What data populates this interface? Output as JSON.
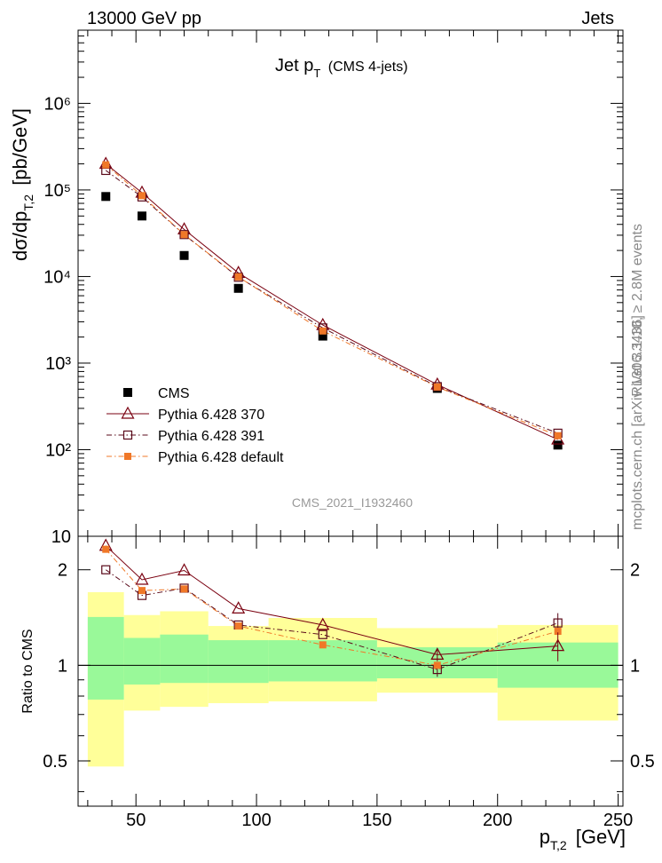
{
  "header": {
    "left": "13000 GeV pp",
    "right": "Jets"
  },
  "side_labels": {
    "rivet": "Rivet 3.1.10, ≥ 2.8M events",
    "mcplots": "mcplots.cern.ch [arXiv:1306.3436]"
  },
  "chart_data": [
    {
      "type": "scatter",
      "title": "Jet p_T (CMS 4-jets)",
      "title_main": "Jet p",
      "title_sub": "T",
      "title_extra": "(CMS 4-jets)",
      "ylabel": "dσ/dp_T,2 [pb/GeV]",
      "ylabel_main": "dσ/dp",
      "ylabel_sub": "T,2",
      "ylabel_unit": "[pb/GeV]",
      "y_scale": "log",
      "ylim": [
        10,
        7000000
      ],
      "xlim": [
        26,
        252
      ],
      "x": [
        37.5,
        52.5,
        70,
        92.5,
        127.5,
        175,
        225
      ],
      "y_tick_labels": [
        "10",
        "10²",
        "10³",
        "10⁴",
        "10⁵",
        "10⁶"
      ],
      "watermark": "CMS_2021_I1932460",
      "legend_position": "lower-left",
      "series": [
        {
          "name": "CMS",
          "color": "#000000",
          "marker": "filled-square",
          "line": "none",
          "values": [
            84000,
            50000,
            17500,
            7300,
            2050,
            510,
            113
          ]
        },
        {
          "name": "Pythia 6.428 370",
          "color": "#7a0010",
          "marker": "open-triangle",
          "line": "solid",
          "values": [
            200000,
            93000,
            35000,
            11000,
            2750,
            565,
            131
          ]
        },
        {
          "name": "Pythia 6.428 391",
          "color": "#5a0a1a",
          "marker": "open-square",
          "line": "dash-dot",
          "values": [
            168000,
            83000,
            30500,
            9800,
            2550,
            535,
            155
          ]
        },
        {
          "name": "Pythia 6.428 default",
          "color": "#f07828",
          "marker": "filled-small-square",
          "line": "dash-dot",
          "values": [
            195000,
            86000,
            30500,
            9900,
            2350,
            530,
            145
          ]
        }
      ]
    },
    {
      "type": "scatter",
      "ylabel": "Ratio to CMS",
      "xlabel": "p_T,2 [GeV]",
      "xlabel_main": "p",
      "xlabel_sub": "T,2",
      "xlabel_unit": "[GeV]",
      "y_scale": "log",
      "ylim": [
        0.36,
        2.55
      ],
      "xlim": [
        26,
        252
      ],
      "x_ticks": [
        50,
        100,
        150,
        200,
        250
      ],
      "x_tick_labels": [
        "50",
        "100",
        "150",
        "200",
        "250"
      ],
      "y_ticks": [
        0.5,
        1,
        2
      ],
      "y_tick_labels": [
        "0.5",
        "1",
        "2"
      ],
      "bin_edges": [
        30,
        45,
        60,
        80,
        105,
        150,
        200,
        250
      ],
      "band_stat_low": [
        0.78,
        0.87,
        0.88,
        0.88,
        0.89,
        0.91,
        0.85
      ],
      "band_stat_high": [
        1.42,
        1.22,
        1.25,
        1.2,
        1.2,
        1.14,
        1.18
      ],
      "band_total_low": [
        0.48,
        0.72,
        0.74,
        0.76,
        0.77,
        0.82,
        0.67
      ],
      "band_total_high": [
        1.7,
        1.44,
        1.48,
        1.33,
        1.41,
        1.31,
        1.34
      ],
      "band_colors": {
        "stat": "#99f999",
        "total": "#ffff99"
      },
      "series": [
        {
          "name": "Pythia 6.428 370",
          "color": "#7a0010",
          "values": [
            2.38,
            1.86,
            1.99,
            1.51,
            1.34,
            1.08,
            1.15
          ]
        },
        {
          "name": "Pythia 6.428 391",
          "color": "#5a0a1a",
          "values": [
            2.0,
            1.66,
            1.75,
            1.34,
            1.25,
            0.97,
            1.36
          ],
          "err": [
            0,
            0,
            0,
            0,
            0,
            0.05,
            0.1
          ]
        },
        {
          "name": "Pythia 6.428 default",
          "color": "#f07828",
          "values": [
            2.32,
            1.72,
            1.74,
            1.33,
            1.16,
            1.0,
            1.28
          ]
        }
      ]
    }
  ]
}
